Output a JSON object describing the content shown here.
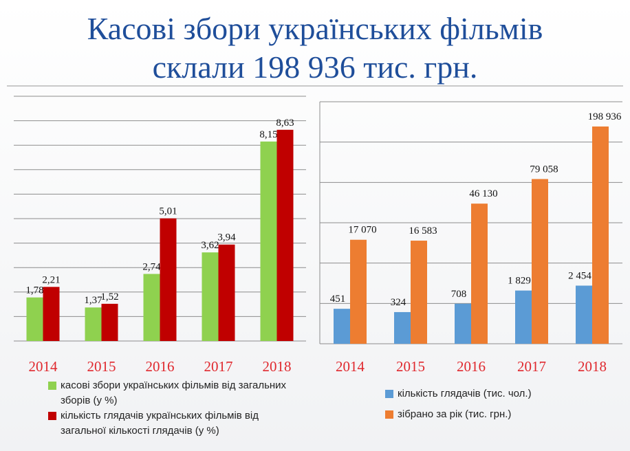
{
  "title": {
    "line1": "Касові збори українських фільмів",
    "line2": "склали 198 936 тис. грн."
  },
  "colors": {
    "title": "#1f4e9a",
    "green": "#8fd14f",
    "red": "#c00000",
    "blue": "#5b9bd5",
    "orange": "#ed7d31",
    "year": "#e0282e",
    "grid": "#8c8c8c"
  },
  "chart_data": [
    {
      "type": "bar",
      "categories": [
        "2014",
        "2015",
        "2016",
        "2017",
        "2018"
      ],
      "ylim": [
        0,
        10
      ],
      "grid": true,
      "legend_position": "bottom",
      "series": [
        {
          "name": "касові збори українських фільмів  від загальних зборів (у %)",
          "values": [
            1.78,
            1.37,
            2.74,
            3.62,
            8.15
          ],
          "labels": [
            "1,78",
            "1,37",
            "2,74",
            "3,62",
            "8,15"
          ]
        },
        {
          "name": "кількість глядачів  українських фільмів від загальної кількості глядачів (у %)",
          "values": [
            2.21,
            1.52,
            5.01,
            3.94,
            8.63
          ],
          "labels": [
            "2,21",
            "1,52",
            "5,01",
            "3,94",
            "8,63"
          ]
        }
      ]
    },
    {
      "type": "bar",
      "categories": [
        "2014",
        "2015",
        "2016",
        "2017",
        "2018"
      ],
      "grid": true,
      "legend_position": "bottom",
      "series": [
        {
          "name": "кількість глядачів (тис. чол.)",
          "values": [
            451,
            324,
            708,
            1829,
            2454
          ],
          "labels": [
            "451",
            "324",
            "708",
            "1 829",
            "2 454"
          ]
        },
        {
          "name": "зібрано за рік (тис. грн.)",
          "values": [
            17070,
            16583,
            46130,
            79058,
            198936
          ],
          "labels": [
            "17 070",
            "16 583",
            "46 130",
            "79 058",
            "198 936"
          ]
        }
      ]
    }
  ]
}
